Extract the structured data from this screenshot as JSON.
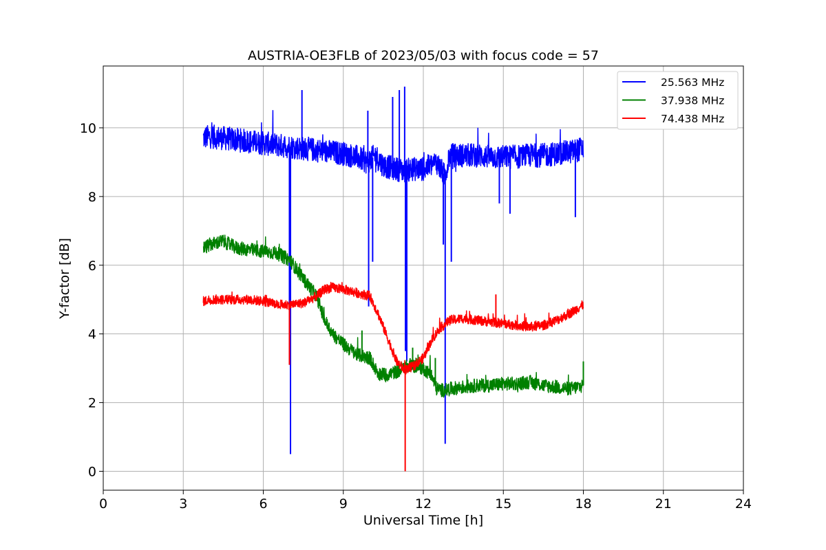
{
  "chart_data": {
    "type": "line",
    "title": "AUSTRIA-OE3FLB of 2023/05/03 with focus code = 57",
    "xlabel": "Universal Time [h]",
    "ylabel": "Y-factor [dB]",
    "xlim": [
      0,
      24
    ],
    "ylim": [
      -0.55,
      11.8
    ],
    "xticks": [
      0,
      3,
      6,
      9,
      12,
      15,
      18,
      21,
      24
    ],
    "yticks": [
      0,
      2,
      4,
      6,
      8,
      10
    ],
    "grid": true,
    "legend_position": "top-right",
    "series": [
      {
        "name": "25.563 MHz",
        "color": "#0000ff",
        "noise_amplitude": 0.35,
        "x": [
          3.75,
          4.0,
          4.5,
          5.0,
          5.5,
          6.0,
          6.5,
          7.0,
          7.5,
          8.0,
          8.5,
          9.0,
          9.5,
          9.9,
          10.2,
          10.5,
          11.0,
          11.3,
          11.6,
          12.0,
          12.5,
          12.8,
          13.0,
          13.5,
          14.0,
          14.5,
          15.0,
          15.5,
          16.0,
          16.5,
          17.0,
          17.5,
          18.0
        ],
        "y": [
          9.7,
          9.75,
          9.7,
          9.65,
          9.6,
          9.55,
          9.5,
          9.45,
          9.4,
          9.35,
          9.3,
          9.25,
          9.15,
          9.0,
          9.2,
          8.9,
          8.8,
          8.75,
          8.8,
          8.8,
          9.0,
          8.6,
          9.2,
          9.2,
          9.2,
          9.15,
          9.15,
          9.15,
          9.2,
          9.2,
          9.25,
          9.3,
          9.4
        ],
        "spikes": [
          {
            "x": 6.98,
            "y": 3.1
          },
          {
            "x": 7.02,
            "y": 0.5
          },
          {
            "x": 7.45,
            "y": 11.1
          },
          {
            "x": 9.92,
            "y": 10.5
          },
          {
            "x": 9.95,
            "y": 4.8
          },
          {
            "x": 10.1,
            "y": 6.1
          },
          {
            "x": 10.85,
            "y": 10.9
          },
          {
            "x": 11.1,
            "y": 11.1
          },
          {
            "x": 11.3,
            "y": 11.2
          },
          {
            "x": 11.33,
            "y": 3.5
          },
          {
            "x": 11.38,
            "y": 3.2
          },
          {
            "x": 12.75,
            "y": 6.6
          },
          {
            "x": 12.82,
            "y": 0.8
          },
          {
            "x": 13.05,
            "y": 6.1
          },
          {
            "x": 14.85,
            "y": 7.8
          },
          {
            "x": 15.25,
            "y": 7.5
          },
          {
            "x": 17.7,
            "y": 7.4
          }
        ]
      },
      {
        "name": "37.938 MHz",
        "color": "#008000",
        "noise_amplitude": 0.2,
        "x": [
          3.75,
          4.0,
          4.5,
          5.0,
          5.5,
          6.0,
          6.5,
          7.0,
          7.5,
          8.0,
          8.3,
          8.6,
          9.0,
          9.5,
          10.0,
          10.3,
          10.6,
          11.0,
          11.5,
          12.0,
          12.3,
          12.5,
          12.8,
          13.0,
          13.5,
          14.0,
          14.5,
          15.0,
          15.5,
          16.0,
          16.5,
          17.0,
          17.5,
          18.0
        ],
        "y": [
          6.5,
          6.6,
          6.7,
          6.5,
          6.45,
          6.4,
          6.35,
          6.15,
          5.6,
          5.1,
          4.4,
          4.0,
          3.7,
          3.4,
          3.3,
          2.85,
          2.8,
          2.9,
          3.1,
          3.0,
          2.8,
          2.4,
          2.35,
          2.4,
          2.45,
          2.5,
          2.5,
          2.55,
          2.55,
          2.6,
          2.5,
          2.45,
          2.4,
          2.5
        ],
        "spikes": [
          {
            "x": 9.7,
            "y": 4.1
          },
          {
            "x": 11.6,
            "y": 3.6
          },
          {
            "x": 12.45,
            "y": 3.3
          },
          {
            "x": 18.0,
            "y": 3.2
          }
        ]
      },
      {
        "name": "74.438 MHz",
        "color": "#ff0000",
        "noise_amplitude": 0.14,
        "x": [
          3.75,
          4.0,
          4.5,
          5.0,
          5.5,
          6.0,
          6.5,
          7.0,
          7.5,
          8.0,
          8.3,
          8.6,
          9.0,
          9.5,
          10.0,
          10.3,
          10.6,
          11.0,
          11.3,
          11.6,
          12.0,
          12.3,
          12.6,
          13.0,
          13.5,
          14.0,
          14.5,
          15.0,
          15.5,
          16.0,
          16.5,
          17.0,
          17.5,
          18.0
        ],
        "y": [
          4.95,
          5.0,
          5.0,
          5.0,
          5.0,
          4.95,
          4.85,
          4.85,
          4.9,
          5.1,
          5.3,
          5.35,
          5.3,
          5.2,
          5.1,
          4.6,
          4.0,
          3.2,
          2.95,
          3.05,
          3.3,
          3.8,
          4.15,
          4.4,
          4.45,
          4.4,
          4.35,
          4.3,
          4.25,
          4.2,
          4.25,
          4.4,
          4.6,
          4.85
        ],
        "spikes": [
          {
            "x": 6.98,
            "y": 3.1
          },
          {
            "x": 11.32,
            "y": 0.0
          },
          {
            "x": 14.72,
            "y": 5.15
          }
        ]
      }
    ]
  }
}
